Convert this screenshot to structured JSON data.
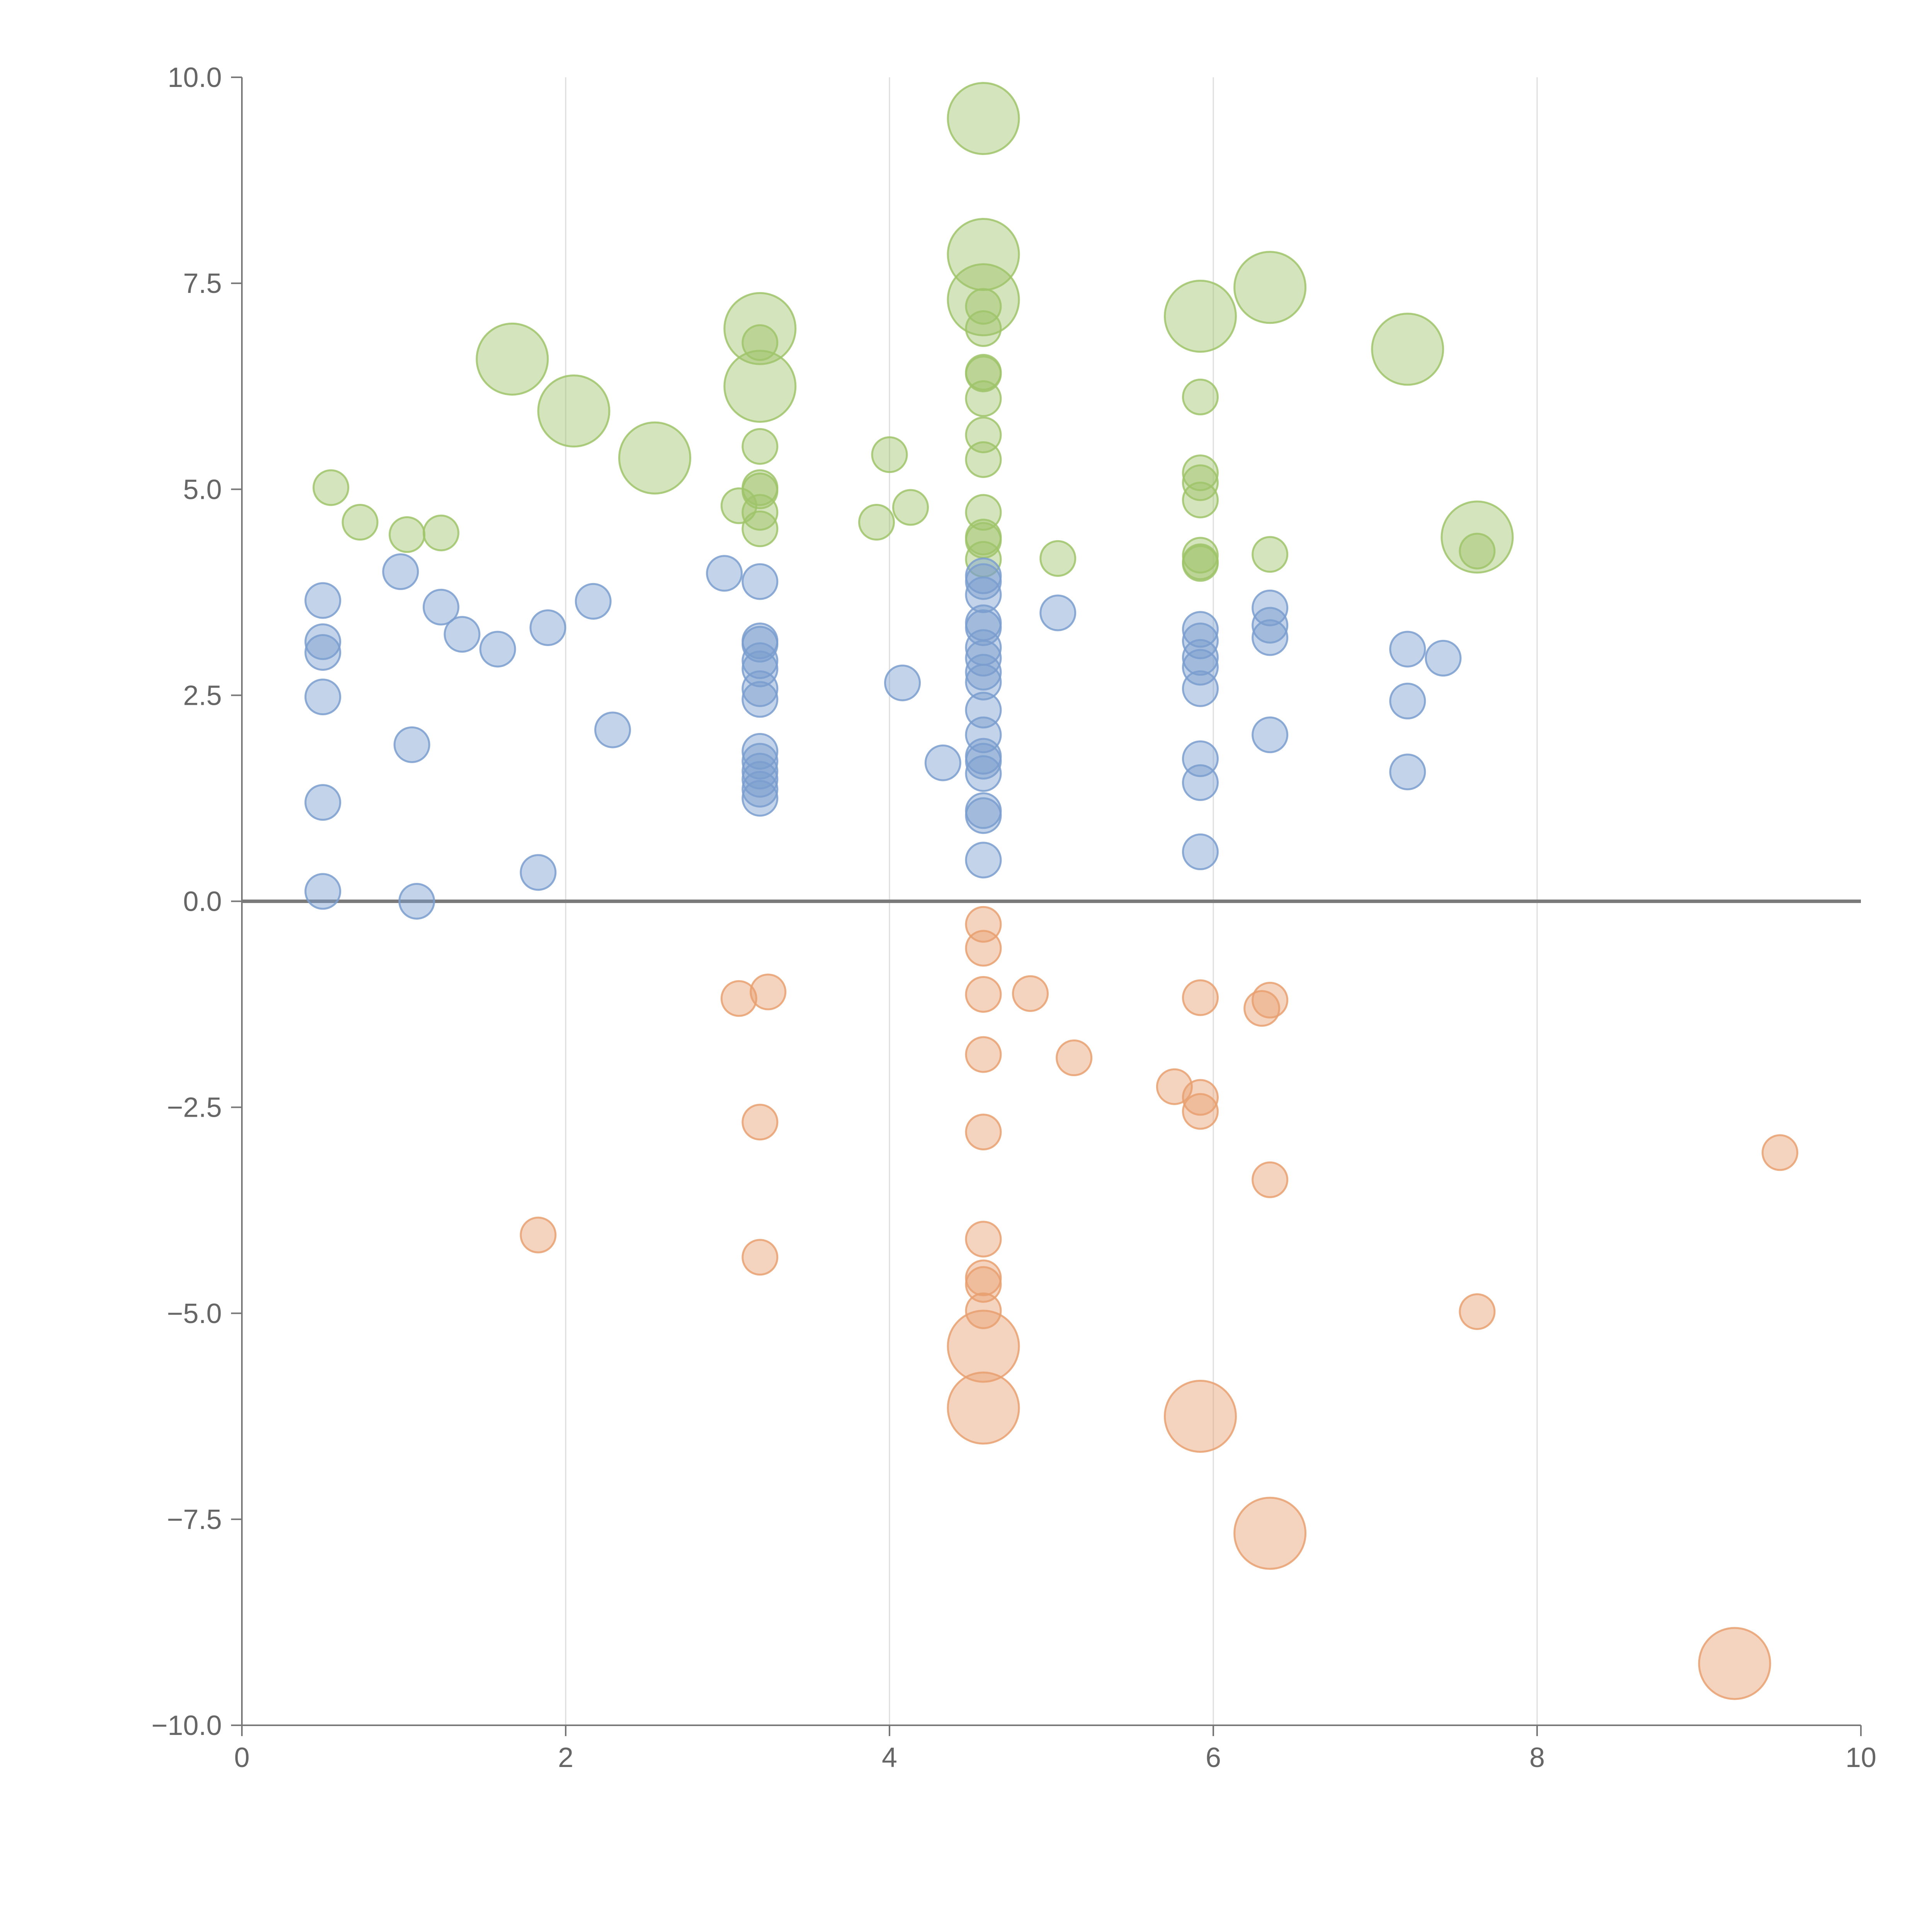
{
  "chart_data": {
    "type": "scatter",
    "subtype": "bubble",
    "title": "",
    "xlabel": "",
    "ylabel": "",
    "xlim": [
      0,
      10
    ],
    "ylim": [
      -10,
      10
    ],
    "x_ticks": [
      "0",
      "2",
      "4",
      "6",
      "8",
      "10"
    ],
    "y_ticks": [
      "10.0",
      "7.5",
      "5.0",
      "2.5",
      "0.0",
      "−2.5",
      "−5.0",
      "−7.5",
      "−10.0"
    ],
    "x_tick_values": [
      0,
      2,
      4,
      6,
      8,
      10
    ],
    "y_tick_values": [
      10,
      7.5,
      5,
      2.5,
      0,
      -2.5,
      -5,
      -7.5,
      -10
    ],
    "vertical_grid": [
      2,
      4,
      6,
      8
    ],
    "zero_line": 0,
    "legend": "none",
    "series": [
      {
        "name": "green",
        "color": "#9fc46a",
        "points": [
          [
            4.58,
            9.5,
            3
          ],
          [
            4.58,
            7.85,
            3
          ],
          [
            4.58,
            7.3,
            3
          ],
          [
            3.2,
            6.95,
            3
          ],
          [
            3.2,
            6.25,
            3
          ],
          [
            1.67,
            6.58,
            3
          ],
          [
            2.05,
            5.95,
            3
          ],
          [
            2.55,
            5.38,
            3
          ],
          [
            5.92,
            7.1,
            3
          ],
          [
            6.35,
            7.45,
            3
          ],
          [
            7.2,
            6.7,
            3
          ],
          [
            7.63,
            4.42,
            3
          ],
          [
            0.55,
            5.02,
            1
          ],
          [
            0.73,
            4.6,
            1
          ],
          [
            1.02,
            4.45,
            1
          ],
          [
            1.23,
            4.47,
            1
          ],
          [
            3.2,
            6.78,
            1
          ],
          [
            3.2,
            5.52,
            1
          ],
          [
            3.2,
            5.02,
            1
          ],
          [
            3.2,
            4.98,
            1
          ],
          [
            3.07,
            4.8,
            1
          ],
          [
            3.2,
            4.72,
            1
          ],
          [
            3.2,
            4.52,
            1
          ],
          [
            4.0,
            5.42,
            1
          ],
          [
            3.92,
            4.6,
            1
          ],
          [
            4.13,
            4.78,
            1
          ],
          [
            4.58,
            7.22,
            1
          ],
          [
            4.58,
            6.95,
            1
          ],
          [
            4.58,
            6.42,
            1
          ],
          [
            4.58,
            6.4,
            1
          ],
          [
            4.58,
            6.1,
            1
          ],
          [
            4.58,
            5.66,
            1
          ],
          [
            4.58,
            5.36,
            1
          ],
          [
            4.58,
            4.72,
            1
          ],
          [
            4.58,
            4.42,
            1
          ],
          [
            4.58,
            4.38,
            1
          ],
          [
            4.58,
            4.15,
            1
          ],
          [
            5.04,
            4.16,
            1
          ],
          [
            5.92,
            6.12,
            1
          ],
          [
            5.92,
            5.2,
            1
          ],
          [
            5.92,
            5.08,
            1
          ],
          [
            5.92,
            4.87,
            1
          ],
          [
            5.92,
            4.2,
            1
          ],
          [
            5.92,
            4.12,
            1
          ],
          [
            5.92,
            4.1,
            1
          ],
          [
            6.35,
            4.21,
            1
          ],
          [
            7.63,
            4.25,
            1
          ]
        ]
      },
      {
        "name": "blue",
        "color": "#7a9dcf",
        "points": [
          [
            0.5,
            3.65,
            1
          ],
          [
            0.5,
            3.15,
            1
          ],
          [
            0.5,
            3.02,
            1
          ],
          [
            0.5,
            2.48,
            1
          ],
          [
            0.5,
            1.2,
            1
          ],
          [
            0.5,
            0.12,
            1
          ],
          [
            0.98,
            4.0,
            1
          ],
          [
            1.23,
            3.57,
            1
          ],
          [
            1.36,
            3.24,
            1
          ],
          [
            1.58,
            3.06,
            1
          ],
          [
            1.89,
            3.32,
            1
          ],
          [
            2.17,
            3.64,
            1
          ],
          [
            1.05,
            1.9,
            1
          ],
          [
            1.08,
            0.0,
            1
          ],
          [
            1.83,
            0.35,
            1
          ],
          [
            2.29,
            2.08,
            1
          ],
          [
            2.98,
            3.98,
            1
          ],
          [
            3.2,
            3.88,
            1
          ],
          [
            3.2,
            3.16,
            1
          ],
          [
            3.2,
            3.12,
            1
          ],
          [
            3.2,
            2.92,
            1
          ],
          [
            3.2,
            2.82,
            1
          ],
          [
            3.2,
            2.58,
            1
          ],
          [
            3.2,
            2.45,
            1
          ],
          [
            3.2,
            1.82,
            1
          ],
          [
            3.2,
            1.7,
            1
          ],
          [
            3.2,
            1.58,
            1
          ],
          [
            3.2,
            1.48,
            1
          ],
          [
            3.2,
            1.36,
            1
          ],
          [
            3.2,
            1.25,
            1
          ],
          [
            4.08,
            2.65,
            1
          ],
          [
            4.33,
            1.68,
            1
          ],
          [
            4.58,
            3.95,
            1
          ],
          [
            4.58,
            3.88,
            1
          ],
          [
            4.58,
            3.72,
            1
          ],
          [
            4.58,
            3.38,
            1
          ],
          [
            4.58,
            3.32,
            1
          ],
          [
            4.58,
            3.08,
            1
          ],
          [
            4.58,
            2.95,
            1
          ],
          [
            4.58,
            2.78,
            1
          ],
          [
            4.58,
            2.66,
            1
          ],
          [
            4.58,
            2.32,
            1
          ],
          [
            4.58,
            2.02,
            1
          ],
          [
            4.58,
            1.76,
            1
          ],
          [
            4.58,
            1.7,
            1
          ],
          [
            4.58,
            1.55,
            1
          ],
          [
            4.58,
            1.1,
            1
          ],
          [
            4.58,
            1.04,
            1
          ],
          [
            4.58,
            0.5,
            1
          ],
          [
            5.04,
            3.5,
            1
          ],
          [
            5.92,
            3.3,
            1
          ],
          [
            5.92,
            3.16,
            1
          ],
          [
            5.92,
            2.96,
            1
          ],
          [
            5.92,
            2.84,
            1
          ],
          [
            5.92,
            2.58,
            1
          ],
          [
            5.92,
            1.73,
            1
          ],
          [
            5.92,
            1.44,
            1
          ],
          [
            5.92,
            0.6,
            1
          ],
          [
            6.35,
            3.56,
            1
          ],
          [
            6.35,
            3.35,
            1
          ],
          [
            6.35,
            3.2,
            1
          ],
          [
            6.35,
            2.02,
            1
          ],
          [
            7.2,
            3.06,
            1
          ],
          [
            7.2,
            2.43,
            1
          ],
          [
            7.2,
            1.57,
            1
          ],
          [
            7.42,
            2.95,
            1
          ]
        ]
      },
      {
        "name": "orange",
        "color": "#e8a070",
        "points": [
          [
            4.58,
            -5.4,
            3
          ],
          [
            4.58,
            -6.15,
            3
          ],
          [
            5.92,
            -6.25,
            3
          ],
          [
            6.35,
            -7.67,
            3
          ],
          [
            9.22,
            -9.25,
            3
          ],
          [
            4.58,
            -0.28,
            1
          ],
          [
            4.58,
            -0.57,
            1
          ],
          [
            4.58,
            -1.13,
            1
          ],
          [
            4.58,
            -1.86,
            1
          ],
          [
            4.58,
            -2.8,
            1
          ],
          [
            4.58,
            -4.1,
            1
          ],
          [
            4.58,
            -4.57,
            1
          ],
          [
            4.58,
            -4.65,
            1
          ],
          [
            4.58,
            -4.97,
            1
          ],
          [
            4.87,
            -1.12,
            1
          ],
          [
            5.14,
            -1.9,
            1
          ],
          [
            3.07,
            -1.18,
            1
          ],
          [
            3.25,
            -1.1,
            1
          ],
          [
            3.2,
            -2.68,
            1
          ],
          [
            3.2,
            -4.32,
            1
          ],
          [
            1.83,
            -4.05,
            1
          ],
          [
            5.92,
            -1.17,
            1
          ],
          [
            5.92,
            -2.38,
            1
          ],
          [
            5.92,
            -2.55,
            1
          ],
          [
            5.76,
            -2.25,
            1
          ],
          [
            6.35,
            -1.2,
            1
          ],
          [
            6.3,
            -1.3,
            1
          ],
          [
            6.35,
            -3.38,
            1
          ],
          [
            7.63,
            -4.98,
            1
          ],
          [
            9.5,
            -3.05,
            1
          ]
        ]
      }
    ]
  }
}
